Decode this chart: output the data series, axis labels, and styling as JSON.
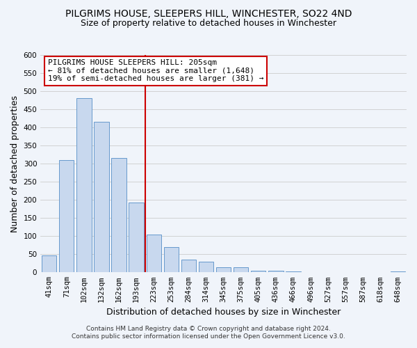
{
  "title": "PILGRIMS HOUSE, SLEEPERS HILL, WINCHESTER, SO22 4ND",
  "subtitle": "Size of property relative to detached houses in Winchester",
  "xlabel": "Distribution of detached houses by size in Winchester",
  "ylabel": "Number of detached properties",
  "bar_labels": [
    "41sqm",
    "71sqm",
    "102sqm",
    "132sqm",
    "162sqm",
    "193sqm",
    "223sqm",
    "253sqm",
    "284sqm",
    "314sqm",
    "345sqm",
    "375sqm",
    "405sqm",
    "436sqm",
    "466sqm",
    "496sqm",
    "527sqm",
    "557sqm",
    "587sqm",
    "618sqm",
    "648sqm"
  ],
  "bar_heights": [
    46,
    310,
    480,
    415,
    315,
    193,
    105,
    69,
    35,
    30,
    14,
    14,
    5,
    5,
    2,
    0,
    0,
    0,
    0,
    0,
    2
  ],
  "bar_color": "#c8d8ee",
  "bar_edge_color": "#6699cc",
  "vline_color": "#cc0000",
  "vline_pos": 5.5,
  "ylim": [
    0,
    600
  ],
  "yticks": [
    0,
    50,
    100,
    150,
    200,
    250,
    300,
    350,
    400,
    450,
    500,
    550,
    600
  ],
  "annotation_title": "PILGRIMS HOUSE SLEEPERS HILL: 205sqm",
  "annotation_line1": "← 81% of detached houses are smaller (1,648)",
  "annotation_line2": "19% of semi-detached houses are larger (381) →",
  "footer1": "Contains HM Land Registry data © Crown copyright and database right 2024.",
  "footer2": "Contains public sector information licensed under the Open Government Licence v3.0.",
  "fig_bg_color": "#f0f4fa",
  "plot_bg_color": "#f0f4fa",
  "grid_color": "#cccccc",
  "title_fontsize": 10,
  "subtitle_fontsize": 9,
  "axis_label_fontsize": 9,
  "tick_fontsize": 7.5,
  "annotation_fontsize": 8,
  "footer_fontsize": 6.5
}
